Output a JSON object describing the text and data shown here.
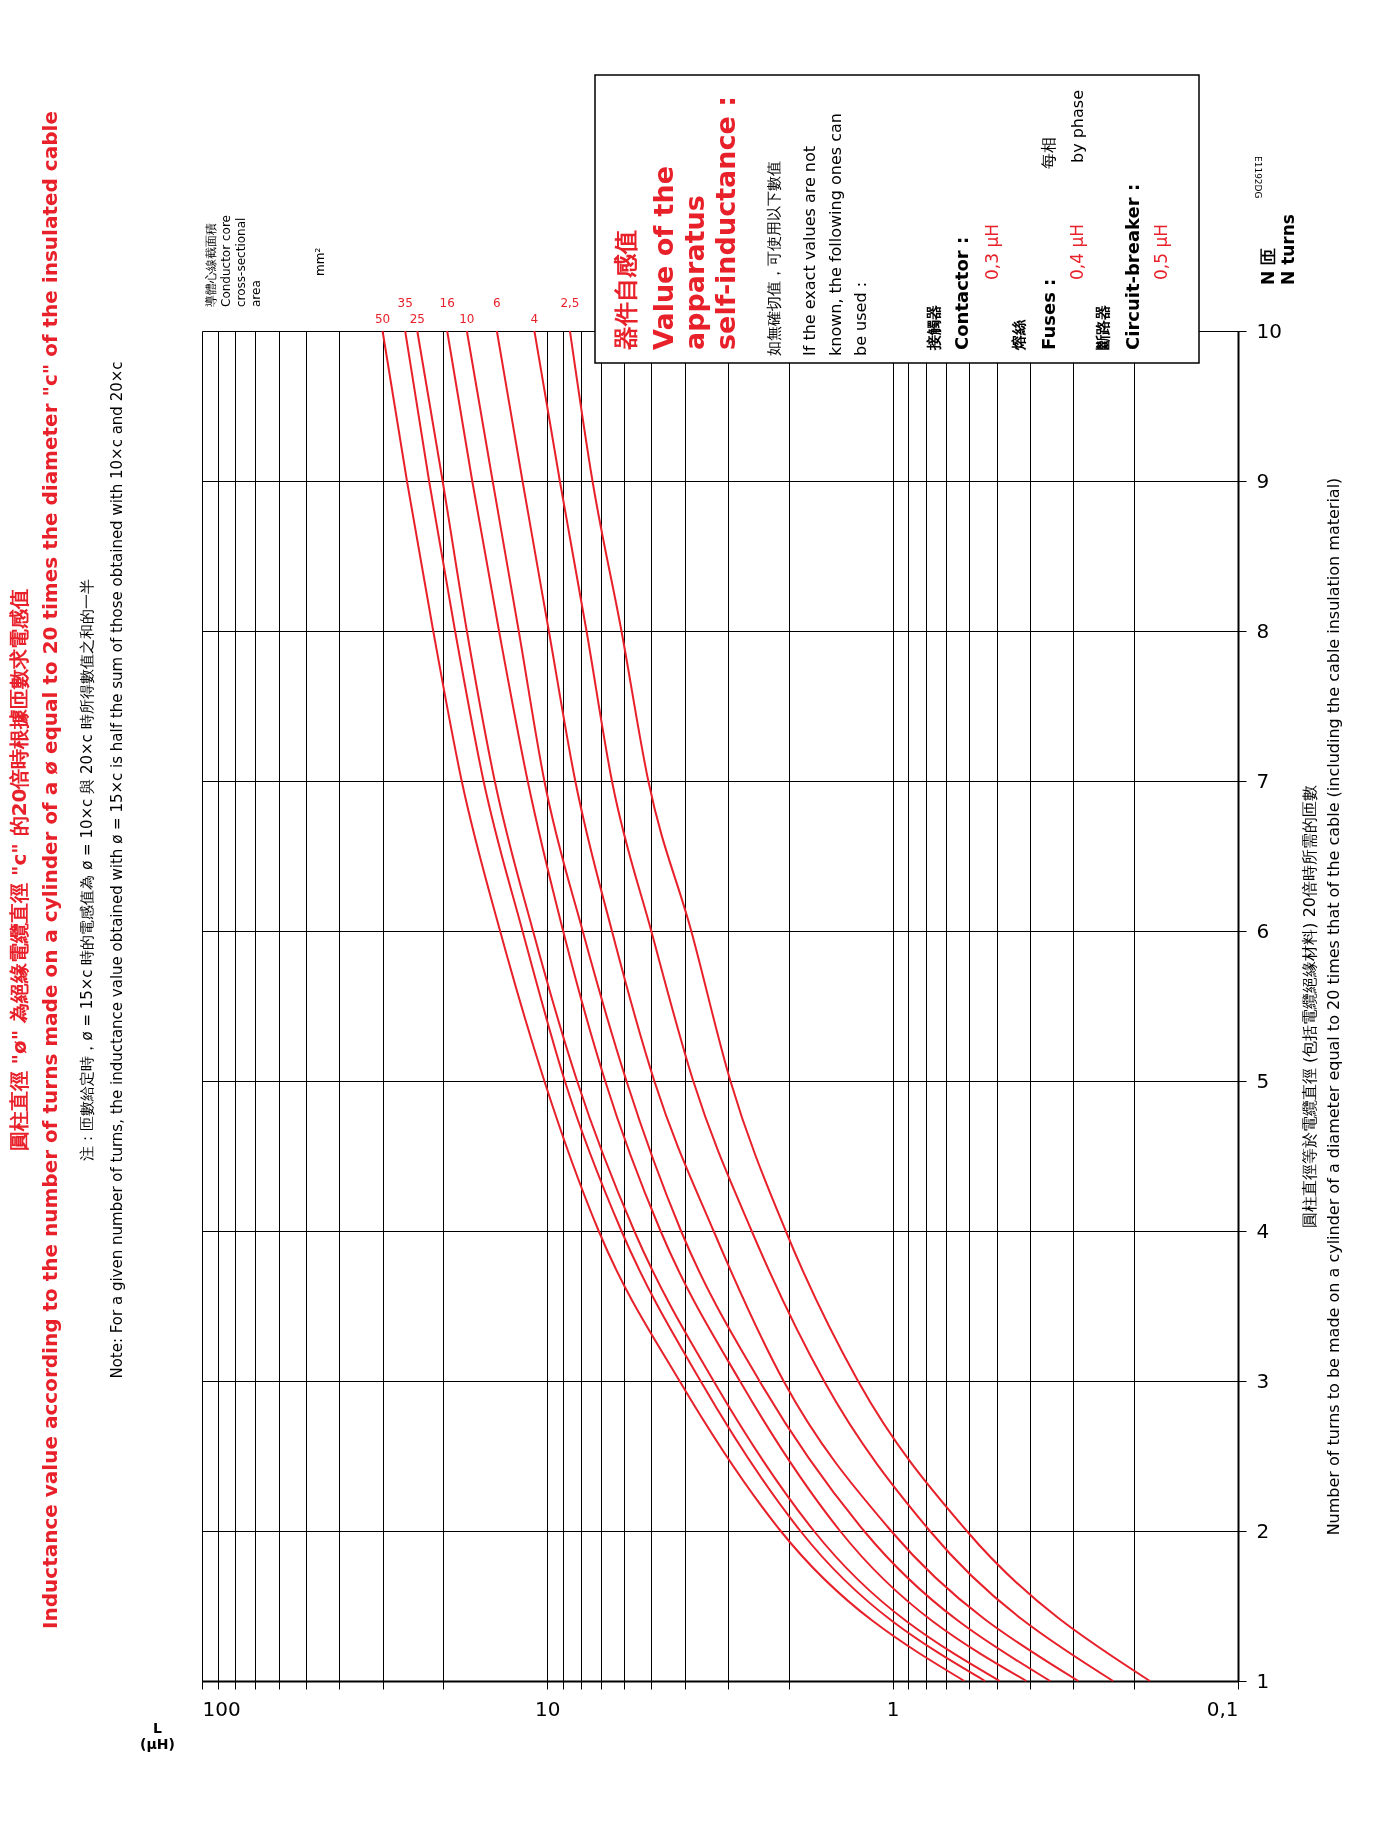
{
  "chart_data": {
    "type": "line",
    "title": "圓柱直徑 \"ø\" 為絕緣電纜直徑 \"c\" 的20倍時根據匝數求電感值\nInductance value according to the number of turns made on a cylinder of a ø equal to 20 times the diameter \"c\" of the insulated cable",
    "subtitle": "注：匝數給定時，ø = 15×c 時的電感值為 ø = 10×c 與 20×c 時所得數值之和的一半\nNote: For a given number of turns, the inductance value obtained with ø = 15×c is half the sum of those obtained with 10×c and 20×c",
    "xlabel": "L\n(µH)",
    "ylabel": "圓柱直徑等於電纜直徑 (包括電纜絕緣材料) 20倍時所需的匝數\nNumber of turns to be made on a cylinder of a diameter equal to 20 times that of the cable  (including the cable insulation material)",
    "legend_title": "導體心線截面積\nConductor core\ncross-sectional\narea",
    "series": [
      {
        "name": "50",
        "color": "#e8202a",
        "x": [
          0.62,
          2.11,
          4.14,
          7.1,
          10.2,
          13.7,
          17.7,
          21.4,
          25.5,
          30
        ],
        "values": [
          1,
          2,
          3,
          4,
          5,
          6,
          7,
          8,
          9,
          10
        ]
      },
      {
        "name": "35",
        "color": "#e8202a",
        "x": [
          0.54,
          1.85,
          3.6,
          6.1,
          8.9,
          11.8,
          15.3,
          18.5,
          22,
          25.8
        ],
        "values": [
          1,
          2,
          3,
          4,
          5,
          6,
          7,
          8,
          9,
          10
        ]
      },
      {
        "name": "25",
        "color": "#e8202a",
        "x": [
          0.49,
          1.69,
          3.3,
          5.6,
          8.2,
          11,
          14.2,
          17.1,
          20.1,
          23.8
        ],
        "values": [
          1,
          2,
          3,
          4,
          5,
          6,
          7,
          8,
          9,
          10
        ]
      },
      {
        "name": "16",
        "color": "#e8202a",
        "x": [
          0.41,
          1.42,
          2.77,
          4.7,
          6.8,
          9,
          11.4,
          13.8,
          16.5,
          19.5
        ],
        "values": [
          1,
          2,
          3,
          4,
          5,
          6,
          7,
          8,
          9,
          10
        ]
      },
      {
        "name": "10",
        "color": "#e8202a",
        "x": [
          0.35,
          1.21,
          2.43,
          4.1,
          5.9,
          7.9,
          10.2,
          12.1,
          14.4,
          17.1
        ],
        "values": [
          1,
          2,
          3,
          4,
          5,
          6,
          7,
          8,
          9,
          10
        ]
      },
      {
        "name": "6",
        "color": "#e8202a",
        "x": [
          0.29,
          1.01,
          2.07,
          3.3,
          4.9,
          6.5,
          8.3,
          9.9,
          11.8,
          14
        ],
        "values": [
          1,
          2,
          3,
          4,
          5,
          6,
          7,
          8,
          9,
          10
        ]
      },
      {
        "name": "4",
        "color": "#e8202a",
        "x": [
          0.23,
          0.78,
          1.58,
          2.56,
          3.78,
          5,
          6.5,
          7.7,
          9.2,
          10.9
        ],
        "values": [
          1,
          2,
          3,
          4,
          5,
          6,
          7,
          8,
          9,
          10
        ]
      },
      {
        "name": "2,5",
        "color": "#e8202a",
        "x": [
          0.18,
          0.61,
          1.26,
          2.04,
          2.95,
          3.83,
          5.1,
          6.1,
          7.4,
          8.6
        ],
        "values": [
          1,
          2,
          3,
          4,
          5,
          6,
          7,
          8,
          9,
          10
        ]
      }
    ],
    "ylim": [
      1,
      10
    ],
    "yticks": [
      1,
      2,
      3,
      4,
      5,
      6,
      7,
      8,
      9,
      10
    ],
    "xlim": [
      100,
      0.1
    ],
    "xticks": [
      100,
      {
        "value": 90,
        "label": null
      },
      {
        "value": 80,
        "label": null
      },
      {
        "value": 70,
        "label": null
      },
      {
        "value": 60,
        "label": null
      },
      {
        "value": 50,
        "label": null
      },
      {
        "value": 40,
        "label": null
      },
      {
        "value": 30,
        "label": null
      },
      {
        "value": 20,
        "label": null
      },
      10,
      {
        "value": 9,
        "label": null
      },
      {
        "value": 8,
        "label": null
      },
      {
        "value": 7,
        "label": null
      },
      {
        "value": 6,
        "label": null
      },
      {
        "value": 5,
        "label": null
      },
      {
        "value": 4,
        "label": null
      },
      {
        "value": 3,
        "label": null
      },
      {
        "value": 2,
        "label": null
      },
      1,
      {
        "value": 0.9,
        "label": null
      },
      {
        "value": 0.8,
        "label": null
      },
      {
        "value": 0.7,
        "label": null
      },
      {
        "value": 0.6,
        "label": null
      },
      {
        "value": 0.5,
        "label": null
      },
      {
        "value": 0.4,
        "label": null
      },
      {
        "value": 0.3,
        "label": null
      },
      {
        "value": 0.2,
        "label": null
      },
      {
        "value": 0.1,
        "label": "0,1"
      }
    ],
    "log": "x",
    "grid": true,
    "marker": "none",
    "line_style": "solid",
    "annotations": [
      "器件自感值",
      "Value of the\napparatus\nself-inductance :",
      "如無確切值，可使用以下數值",
      "If the exact values are not\nknown, the following ones can\nbe used :",
      "接觸器",
      "Contactor :",
      "0,3 µH",
      "熔絲",
      "Fuses :",
      "0,4 µH",
      "斷路器",
      "Circuit-breaker :",
      "0,5 µH",
      "每相",
      "by phase",
      "N 匝\nN turns",
      "E1192DG",
      "mm²"
    ]
  }
}
